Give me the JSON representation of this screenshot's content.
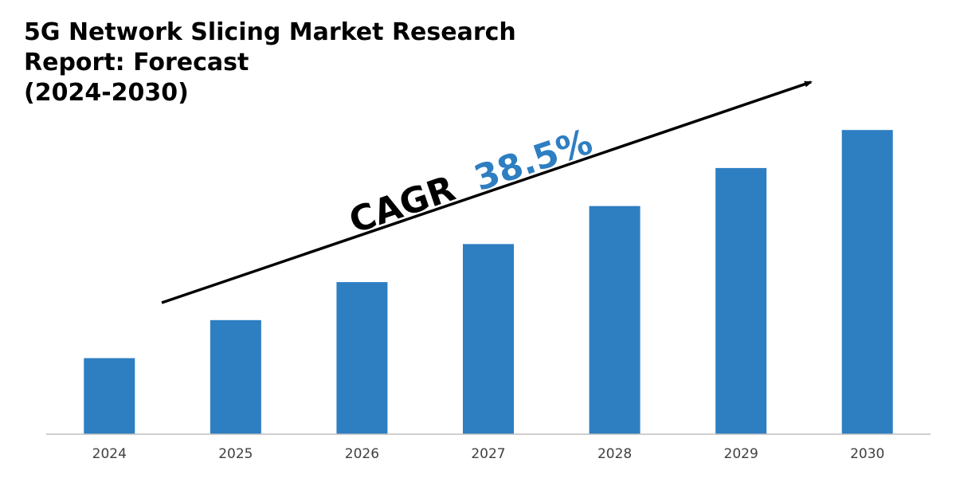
{
  "title": {
    "line1": "5G Network Slicing Market Research",
    "line2": "Report: Forecast",
    "line3": "(2024-2030)"
  },
  "colors": {
    "bar": "#2E7EC2",
    "cagr_value": "#2E7EC2",
    "arrow": "#000000",
    "axis": "#BFBFBF"
  },
  "chart_data": {
    "type": "bar",
    "title": "5G Network Slicing Market Research Report: Forecast (2024-2030)",
    "xlabel": "",
    "ylabel": "",
    "categories": [
      "2024",
      "2025",
      "2026",
      "2027",
      "2028",
      "2029",
      "2030"
    ],
    "values": [
      1.0,
      1.5,
      2.0,
      2.5,
      3.0,
      3.5,
      4.0
    ],
    "ylim": [
      0,
      4.4
    ],
    "grid": false,
    "legend": "none",
    "annotation": {
      "label": "CAGR",
      "value": "38.5%"
    }
  }
}
